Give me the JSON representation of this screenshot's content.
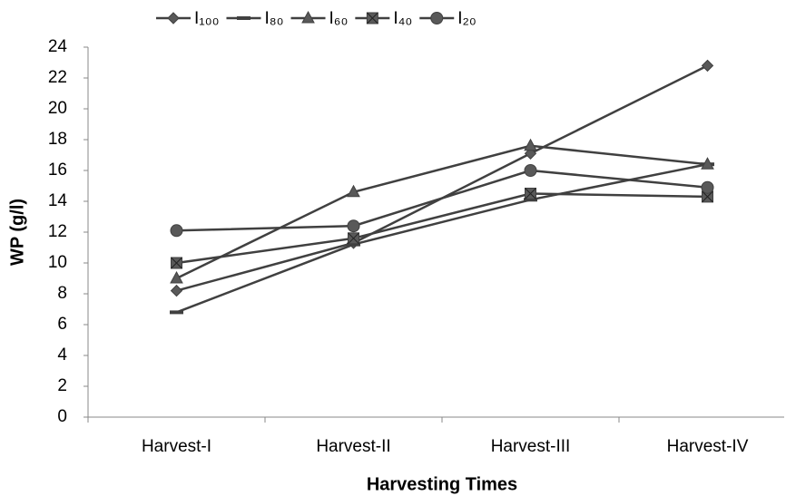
{
  "chart_data": {
    "type": "line",
    "x_label": "Harvesting Times",
    "y_label": "WP (g/l)",
    "categories": [
      "Harvest-I",
      "Harvest-II",
      "Harvest-III",
      "Harvest-IV"
    ],
    "series": [
      {
        "name": "I₁₀₀",
        "color": "#404040",
        "values": [
          8.2,
          11.3,
          17.1,
          22.8
        ]
      },
      {
        "name": "I₈₀",
        "color": "#404040",
        "values": [
          6.8,
          11.2,
          14.1,
          16.4
        ]
      },
      {
        "name": "I₆₀",
        "color": "#404040",
        "values": [
          9.0,
          14.6,
          17.6,
          16.4
        ]
      },
      {
        "name": "I₄₀",
        "color": "#404040",
        "values": [
          10.0,
          11.6,
          14.5,
          14.3
        ]
      },
      {
        "name": "I₂₀",
        "color": "#404040",
        "values": [
          12.1,
          12.4,
          16.0,
          14.9
        ]
      }
    ],
    "ylim": [
      0,
      24
    ],
    "yticks": [
      0,
      2,
      4,
      6,
      8,
      10,
      12,
      14,
      16,
      18,
      20,
      22,
      24
    ],
    "grid": false,
    "legend": "top"
  }
}
